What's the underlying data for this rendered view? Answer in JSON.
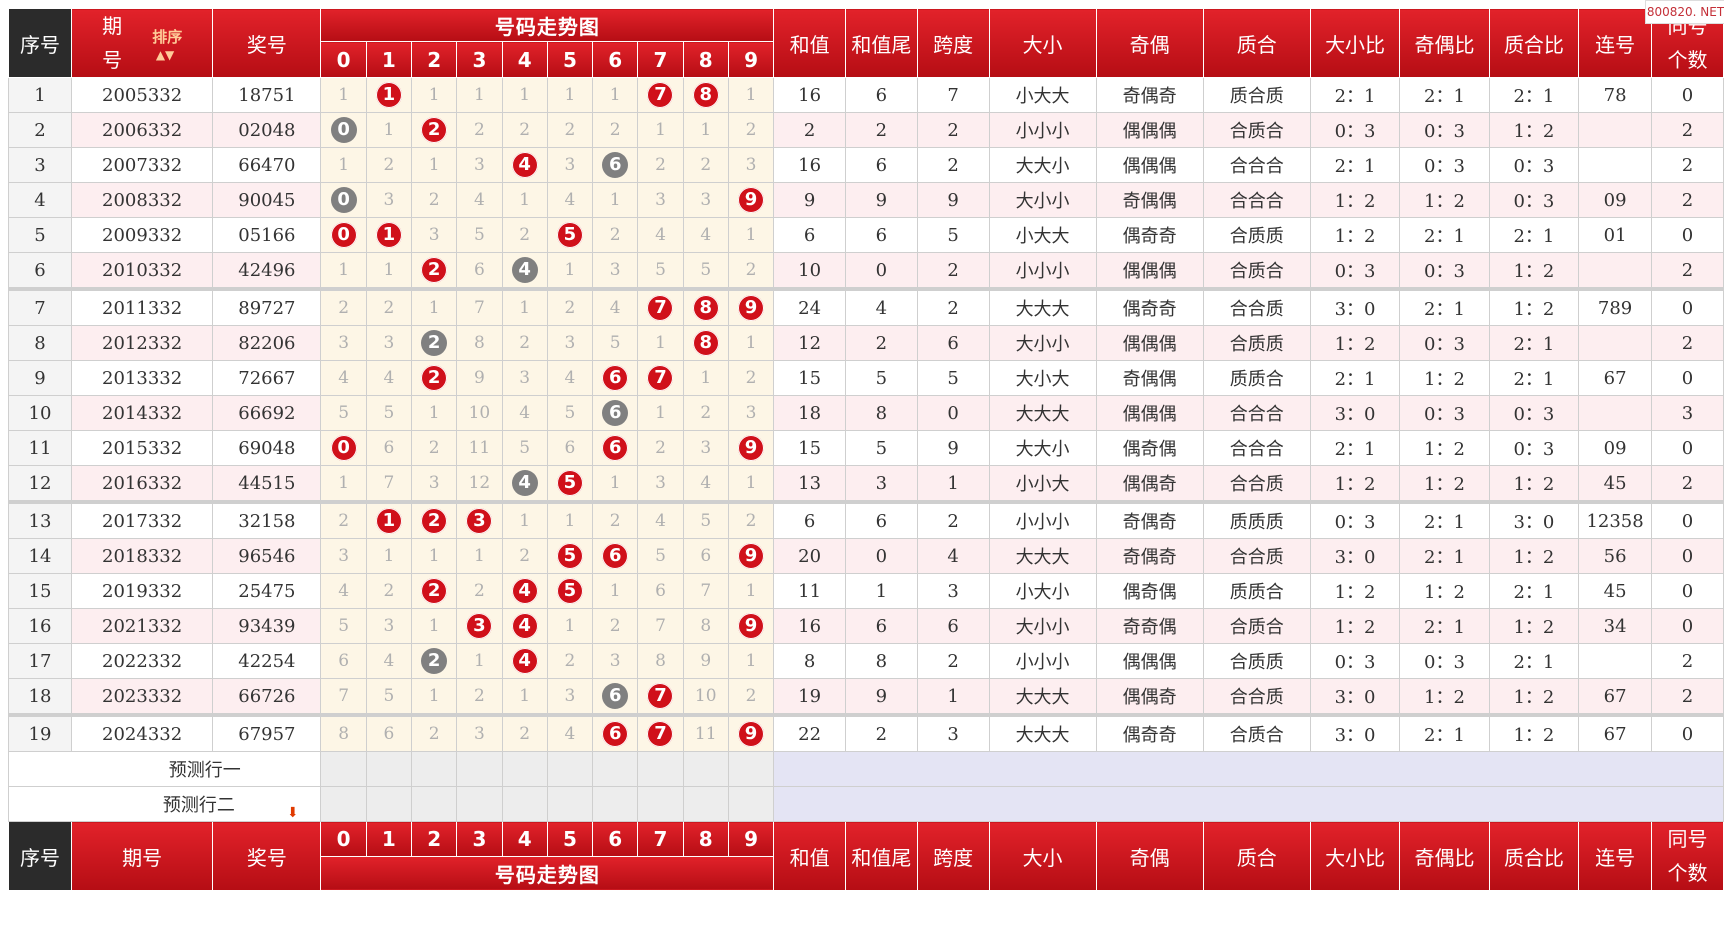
{
  "watermark": "800820. NET",
  "header": {
    "seq": "序号",
    "period_line1": "期",
    "period_line2": "号",
    "sort_label": "排序",
    "sort_arrows": "▲▼",
    "period_full": "期号",
    "prize": "奖号",
    "trend_title": "号码走势图",
    "digits": [
      "0",
      "1",
      "2",
      "3",
      "4",
      "5",
      "6",
      "7",
      "8",
      "9"
    ],
    "sum": "和值",
    "sum_tail": "和值尾",
    "span": "跨度",
    "size": "大小",
    "parity": "奇偶",
    "prime": "质合",
    "size_ratio": "大小比",
    "parity_ratio": "奇偶比",
    "prime_ratio": "质合比",
    "consec": "连号",
    "same_line1": "同号",
    "same_line2": "个数"
  },
  "rows": [
    {
      "seq": "1",
      "period": "2005332",
      "prize": "18751",
      "trend": [
        "1",
        "1",
        "1",
        "1",
        "1",
        "1",
        "1",
        "7",
        "8",
        "1"
      ],
      "balls": [
        null,
        "red",
        null,
        null,
        null,
        null,
        null,
        "red",
        "red",
        null
      ],
      "sum": "16",
      "sum_tail": "6",
      "span": "7",
      "size": "小大大",
      "parity": "奇偶奇",
      "prime": "质合质",
      "size_ratio": "2：1",
      "parity_ratio": "2：1",
      "prime_ratio": "2：1",
      "consec": "78",
      "same": "0"
    },
    {
      "seq": "2",
      "period": "2006332",
      "prize": "02048",
      "trend": [
        "0",
        "1",
        "2",
        "2",
        "2",
        "2",
        "2",
        "1",
        "1",
        "2"
      ],
      "balls": [
        "gray",
        null,
        "red",
        null,
        null,
        null,
        null,
        null,
        null,
        null
      ],
      "sum": "2",
      "sum_tail": "2",
      "span": "2",
      "size": "小小小",
      "parity": "偶偶偶",
      "prime": "合质合",
      "size_ratio": "0：3",
      "parity_ratio": "0：3",
      "prime_ratio": "1：2",
      "consec": "",
      "same": "2"
    },
    {
      "seq": "3",
      "period": "2007332",
      "prize": "66470",
      "trend": [
        "1",
        "2",
        "1",
        "3",
        "4",
        "3",
        "6",
        "2",
        "2",
        "3"
      ],
      "balls": [
        null,
        null,
        null,
        null,
        "red",
        null,
        "gray",
        null,
        null,
        null
      ],
      "sum": "16",
      "sum_tail": "6",
      "span": "2",
      "size": "大大小",
      "parity": "偶偶偶",
      "prime": "合合合",
      "size_ratio": "2：1",
      "parity_ratio": "0：3",
      "prime_ratio": "0：3",
      "consec": "",
      "same": "2"
    },
    {
      "seq": "4",
      "period": "2008332",
      "prize": "90045",
      "trend": [
        "0",
        "3",
        "2",
        "4",
        "1",
        "4",
        "1",
        "3",
        "3",
        "9"
      ],
      "balls": [
        "gray",
        null,
        null,
        null,
        null,
        null,
        null,
        null,
        null,
        "red"
      ],
      "sum": "9",
      "sum_tail": "9",
      "span": "9",
      "size": "大小小",
      "parity": "奇偶偶",
      "prime": "合合合",
      "size_ratio": "1：2",
      "parity_ratio": "1：2",
      "prime_ratio": "0：3",
      "consec": "09",
      "same": "2"
    },
    {
      "seq": "5",
      "period": "2009332",
      "prize": "05166",
      "trend": [
        "0",
        "1",
        "3",
        "5",
        "2",
        "5",
        "2",
        "4",
        "4",
        "1"
      ],
      "balls": [
        "red",
        "red",
        null,
        null,
        null,
        "red",
        null,
        null,
        null,
        null
      ],
      "sum": "6",
      "sum_tail": "6",
      "span": "5",
      "size": "小大大",
      "parity": "偶奇奇",
      "prime": "合质质",
      "size_ratio": "1：2",
      "parity_ratio": "2：1",
      "prime_ratio": "2：1",
      "consec": "01",
      "same": "0"
    },
    {
      "seq": "6",
      "period": "2010332",
      "prize": "42496",
      "trend": [
        "1",
        "1",
        "2",
        "6",
        "4",
        "1",
        "3",
        "5",
        "5",
        "2"
      ],
      "balls": [
        null,
        null,
        "red",
        null,
        "gray",
        null,
        null,
        null,
        null,
        null
      ],
      "sum": "10",
      "sum_tail": "0",
      "span": "2",
      "size": "小小小",
      "parity": "偶偶偶",
      "prime": "合质合",
      "size_ratio": "0：3",
      "parity_ratio": "0：3",
      "prime_ratio": "1：2",
      "consec": "",
      "same": "2"
    },
    {
      "seq": "7",
      "period": "2011332",
      "prize": "89727",
      "trend": [
        "2",
        "2",
        "1",
        "7",
        "1",
        "2",
        "4",
        "7",
        "8",
        "9"
      ],
      "balls": [
        null,
        null,
        null,
        null,
        null,
        null,
        null,
        "red",
        "red",
        "red"
      ],
      "sum": "24",
      "sum_tail": "4",
      "span": "2",
      "size": "大大大",
      "parity": "偶奇奇",
      "prime": "合合质",
      "size_ratio": "3：0",
      "parity_ratio": "2：1",
      "prime_ratio": "1：2",
      "consec": "789",
      "same": "0"
    },
    {
      "seq": "8",
      "period": "2012332",
      "prize": "82206",
      "trend": [
        "3",
        "3",
        "2",
        "8",
        "2",
        "3",
        "5",
        "1",
        "8",
        "1"
      ],
      "balls": [
        null,
        null,
        "gray",
        null,
        null,
        null,
        null,
        null,
        "red",
        null
      ],
      "sum": "12",
      "sum_tail": "2",
      "span": "6",
      "size": "大小小",
      "parity": "偶偶偶",
      "prime": "合质质",
      "size_ratio": "1：2",
      "parity_ratio": "0：3",
      "prime_ratio": "2：1",
      "consec": "",
      "same": "2"
    },
    {
      "seq": "9",
      "period": "2013332",
      "prize": "72667",
      "trend": [
        "4",
        "4",
        "2",
        "9",
        "3",
        "4",
        "6",
        "7",
        "1",
        "2"
      ],
      "balls": [
        null,
        null,
        "red",
        null,
        null,
        null,
        "red",
        "red",
        null,
        null
      ],
      "sum": "15",
      "sum_tail": "5",
      "span": "5",
      "size": "大小大",
      "parity": "奇偶偶",
      "prime": "质质合",
      "size_ratio": "2：1",
      "parity_ratio": "1：2",
      "prime_ratio": "2：1",
      "consec": "67",
      "same": "0"
    },
    {
      "seq": "10",
      "period": "2014332",
      "prize": "66692",
      "trend": [
        "5",
        "5",
        "1",
        "10",
        "4",
        "5",
        "6",
        "1",
        "2",
        "3"
      ],
      "balls": [
        null,
        null,
        null,
        null,
        null,
        null,
        "gray",
        null,
        null,
        null
      ],
      "sum": "18",
      "sum_tail": "8",
      "span": "0",
      "size": "大大大",
      "parity": "偶偶偶",
      "prime": "合合合",
      "size_ratio": "3：0",
      "parity_ratio": "0：3",
      "prime_ratio": "0：3",
      "consec": "",
      "same": "3"
    },
    {
      "seq": "11",
      "period": "2015332",
      "prize": "69048",
      "trend": [
        "0",
        "6",
        "2",
        "11",
        "5",
        "6",
        "6",
        "2",
        "3",
        "9"
      ],
      "balls": [
        "red",
        null,
        null,
        null,
        null,
        null,
        "red",
        null,
        null,
        "red"
      ],
      "sum": "15",
      "sum_tail": "5",
      "span": "9",
      "size": "大大小",
      "parity": "偶奇偶",
      "prime": "合合合",
      "size_ratio": "2：1",
      "parity_ratio": "1：2",
      "prime_ratio": "0：3",
      "consec": "09",
      "same": "0"
    },
    {
      "seq": "12",
      "period": "2016332",
      "prize": "44515",
      "trend": [
        "1",
        "7",
        "3",
        "12",
        "4",
        "5",
        "1",
        "3",
        "4",
        "1"
      ],
      "balls": [
        null,
        null,
        null,
        null,
        "gray",
        "red",
        null,
        null,
        null,
        null
      ],
      "sum": "13",
      "sum_tail": "3",
      "span": "1",
      "size": "小小大",
      "parity": "偶偶奇",
      "prime": "合合质",
      "size_ratio": "1：2",
      "parity_ratio": "1：2",
      "prime_ratio": "1：2",
      "consec": "45",
      "same": "2"
    },
    {
      "seq": "13",
      "period": "2017332",
      "prize": "32158",
      "trend": [
        "2",
        "1",
        "2",
        "3",
        "1",
        "1",
        "2",
        "4",
        "5",
        "2"
      ],
      "balls": [
        null,
        "red",
        "red",
        "red",
        null,
        null,
        null,
        null,
        null,
        null
      ],
      "sum": "6",
      "sum_tail": "6",
      "span": "2",
      "size": "小小小",
      "parity": "奇偶奇",
      "prime": "质质质",
      "size_ratio": "0：3",
      "parity_ratio": "2：1",
      "prime_ratio": "3：0",
      "consec": "12358",
      "same": "0"
    },
    {
      "seq": "14",
      "period": "2018332",
      "prize": "96546",
      "trend": [
        "3",
        "1",
        "1",
        "1",
        "2",
        "5",
        "6",
        "5",
        "6",
        "9"
      ],
      "balls": [
        null,
        null,
        null,
        null,
        null,
        "red",
        "red",
        null,
        null,
        "red"
      ],
      "sum": "20",
      "sum_tail": "0",
      "span": "4",
      "size": "大大大",
      "parity": "奇偶奇",
      "prime": "合合质",
      "size_ratio": "3：0",
      "parity_ratio": "2：1",
      "prime_ratio": "1：2",
      "consec": "56",
      "same": "0"
    },
    {
      "seq": "15",
      "period": "2019332",
      "prize": "25475",
      "trend": [
        "4",
        "2",
        "2",
        "2",
        "4",
        "5",
        "1",
        "6",
        "7",
        "1"
      ],
      "balls": [
        null,
        null,
        "red",
        null,
        "red",
        "red",
        null,
        null,
        null,
        null
      ],
      "sum": "11",
      "sum_tail": "1",
      "span": "3",
      "size": "小大小",
      "parity": "偶奇偶",
      "prime": "质质合",
      "size_ratio": "1：2",
      "parity_ratio": "1：2",
      "prime_ratio": "2：1",
      "consec": "45",
      "same": "0"
    },
    {
      "seq": "16",
      "period": "2021332",
      "prize": "93439",
      "trend": [
        "5",
        "3",
        "1",
        "3",
        "4",
        "1",
        "2",
        "7",
        "8",
        "9"
      ],
      "balls": [
        null,
        null,
        null,
        "red",
        "red",
        null,
        null,
        null,
        null,
        "red"
      ],
      "sum": "16",
      "sum_tail": "6",
      "span": "6",
      "size": "大小小",
      "parity": "奇奇偶",
      "prime": "合质合",
      "size_ratio": "1：2",
      "parity_ratio": "2：1",
      "prime_ratio": "1：2",
      "consec": "34",
      "same": "0"
    },
    {
      "seq": "17",
      "period": "2022332",
      "prize": "42254",
      "trend": [
        "6",
        "4",
        "2",
        "1",
        "4",
        "2",
        "3",
        "8",
        "9",
        "1"
      ],
      "balls": [
        null,
        null,
        "gray",
        null,
        "red",
        null,
        null,
        null,
        null,
        null
      ],
      "sum": "8",
      "sum_tail": "8",
      "span": "2",
      "size": "小小小",
      "parity": "偶偶偶",
      "prime": "合质质",
      "size_ratio": "0：3",
      "parity_ratio": "0：3",
      "prime_ratio": "2：1",
      "consec": "",
      "same": "2"
    },
    {
      "seq": "18",
      "period": "2023332",
      "prize": "66726",
      "trend": [
        "7",
        "5",
        "1",
        "2",
        "1",
        "3",
        "6",
        "7",
        "10",
        "2"
      ],
      "balls": [
        null,
        null,
        null,
        null,
        null,
        null,
        "gray",
        "red",
        null,
        null
      ],
      "sum": "19",
      "sum_tail": "9",
      "span": "1",
      "size": "大大大",
      "parity": "偶偶奇",
      "prime": "合合质",
      "size_ratio": "3：0",
      "parity_ratio": "1：2",
      "prime_ratio": "1：2",
      "consec": "67",
      "same": "2"
    },
    {
      "seq": "19",
      "period": "2024332",
      "prize": "67957",
      "trend": [
        "8",
        "6",
        "2",
        "3",
        "2",
        "4",
        "6",
        "7",
        "11",
        "9"
      ],
      "balls": [
        null,
        null,
        null,
        null,
        null,
        null,
        "red",
        "red",
        null,
        "red"
      ],
      "sum": "22",
      "sum_tail": "2",
      "span": "3",
      "size": "大大大",
      "parity": "偶奇奇",
      "prime": "合质合",
      "size_ratio": "3：0",
      "parity_ratio": "2：1",
      "prime_ratio": "1：2",
      "consec": "67",
      "same": "0"
    }
  ],
  "predict": {
    "row1": "预测行一",
    "row2": "预测行二",
    "arrow": "⬇"
  }
}
